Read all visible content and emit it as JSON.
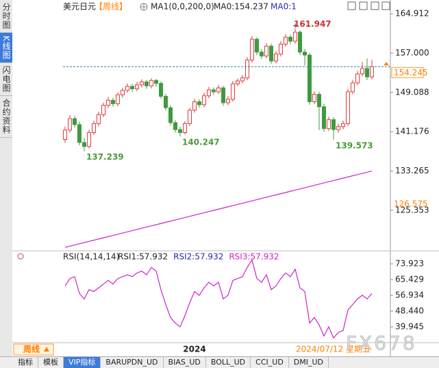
{
  "chart_data": [
    {
      "type": "candlestick",
      "title": "美元日元",
      "subtitle": "【周线】",
      "header_notes": [
        "MA0:154.237",
        "MA0:1"
      ],
      "categories": [
        null,
        null,
        null,
        null,
        null,
        null,
        null,
        null,
        null,
        null,
        null,
        null,
        null,
        null,
        null,
        null,
        null,
        null,
        null,
        null,
        null,
        null,
        null,
        null,
        null,
        null,
        null,
        "2024",
        null,
        null,
        null,
        null,
        null,
        null,
        null,
        null,
        null,
        null,
        null,
        null,
        null,
        null,
        null,
        null,
        null,
        null,
        null,
        null,
        null,
        null,
        null,
        null,
        null,
        null,
        null,
        null,
        null,
        null,
        null,
        null,
        null,
        null,
        null,
        null,
        null
      ],
      "open": [
        139.6,
        141.5,
        143.8,
        142.6,
        139.0,
        138.2,
        141.0,
        142.8,
        144.6,
        146.5,
        147.5,
        146.8,
        148.6,
        149.5,
        150.3,
        149.8,
        150.6,
        151.2,
        150.4,
        151.5,
        150.9,
        148.3,
        146.0,
        143.0,
        141.6,
        141.0,
        142.8,
        145.5,
        147.2,
        146.6,
        148.4,
        149.6,
        149.2,
        150.0,
        147.0,
        147.7,
        150.8,
        151.4,
        152.0,
        155.6,
        159.8,
        157.2,
        156.4,
        158.4,
        155.4,
        156.8,
        158.8,
        160.2,
        159.4,
        161.2,
        157.2,
        156.6,
        147.2,
        148.7,
        146.2,
        141.8,
        143.6,
        141.6,
        142.2,
        142.8,
        149.2,
        151.0,
        152.8,
        153.9,
        152.2
      ],
      "high": [
        142.2,
        144.5,
        144.4,
        143.2,
        140.0,
        141.6,
        143.4,
        145.2,
        147.0,
        148.2,
        148.0,
        149.1,
        150.0,
        150.9,
        150.8,
        151.2,
        151.7,
        151.6,
        151.9,
        151.8,
        151.3,
        148.8,
        146.5,
        143.5,
        142.2,
        143.3,
        146.0,
        147.8,
        147.7,
        149.0,
        150.2,
        150.1,
        150.6,
        150.4,
        148.3,
        151.4,
        151.9,
        152.6,
        156.2,
        160.4,
        160.2,
        157.8,
        159.0,
        158.9,
        157.4,
        159.4,
        160.8,
        160.7,
        161.947,
        161.6,
        157.8,
        157.0,
        149.3,
        149.2,
        146.8,
        144.2,
        144.1,
        142.8,
        143.4,
        149.8,
        151.6,
        153.4,
        155.2,
        155.9,
        155.6
      ],
      "low": [
        138.9,
        141.0,
        142.0,
        138.4,
        137.239,
        137.8,
        140.5,
        142.2,
        144.1,
        145.9,
        146.2,
        146.3,
        148.0,
        149.0,
        149.2,
        149.3,
        150.1,
        149.8,
        149.9,
        150.2,
        147.8,
        145.4,
        142.4,
        141.0,
        140.247,
        140.6,
        142.3,
        145.0,
        146.0,
        146.1,
        147.9,
        148.6,
        148.8,
        146.4,
        146.5,
        147.2,
        150.3,
        150.9,
        151.5,
        155.1,
        156.6,
        155.8,
        155.9,
        154.8,
        154.9,
        156.3,
        158.3,
        158.8,
        158.9,
        156.6,
        154.5,
        146.6,
        146.7,
        141.5,
        141.2,
        141.3,
        139.573,
        141.0,
        141.6,
        142.3,
        148.7,
        150.5,
        152.3,
        151.6,
        151.7
      ],
      "close": [
        141.5,
        143.8,
        142.6,
        139.0,
        138.2,
        141.0,
        142.8,
        144.6,
        146.5,
        147.5,
        146.8,
        148.6,
        149.5,
        150.3,
        149.8,
        150.6,
        151.2,
        150.4,
        151.5,
        150.9,
        148.3,
        146.0,
        143.0,
        141.6,
        141.0,
        142.8,
        145.5,
        147.2,
        146.6,
        148.4,
        149.6,
        149.2,
        150.0,
        147.0,
        147.7,
        150.8,
        151.4,
        152.0,
        155.6,
        159.8,
        157.2,
        156.4,
        158.4,
        155.4,
        156.8,
        158.8,
        160.2,
        159.4,
        161.2,
        157.2,
        156.6,
        147.2,
        148.7,
        146.2,
        141.8,
        143.6,
        141.6,
        142.2,
        142.8,
        149.2,
        151.0,
        152.8,
        153.9,
        152.2,
        154.245
      ],
      "up_color": "#e03a3a",
      "down_color": "#3f9a3f",
      "series": [
        {
          "name": "MA1(0,0,200,0)",
          "color": "#cc22cc",
          "values": [
            117.9,
            118.14,
            118.38,
            118.62,
            118.86,
            119.1,
            119.34,
            119.58,
            119.82,
            120.06,
            120.3,
            120.54,
            120.78,
            121.02,
            121.26,
            121.5,
            121.74,
            121.98,
            122.22,
            122.46,
            122.7,
            122.94,
            123.18,
            123.42,
            123.66,
            123.9,
            124.14,
            124.38,
            124.62,
            124.86,
            125.1,
            125.34,
            125.58,
            125.82,
            126.06,
            126.3,
            126.54,
            126.78,
            127.02,
            127.26,
            127.5,
            127.74,
            127.98,
            128.22,
            128.46,
            128.7,
            128.94,
            129.18,
            129.42,
            129.66,
            129.9,
            130.14,
            130.38,
            130.62,
            130.86,
            131.1,
            131.34,
            131.58,
            131.82,
            132.06,
            132.3,
            132.54,
            132.78,
            133.02,
            133.26
          ]
        }
      ],
      "ylim": [
        117.2,
        166.3
      ],
      "yticks": [
        125.353,
        133.265,
        141.176,
        149.088,
        {
          "value": 157,
          "label": "157.000"
        },
        164.912
      ],
      "right_markers": [
        126.575
      ],
      "current_date": "2024/07/12 星期五"
    },
    {
      "type": "line",
      "title": "RSI(14,14,14)",
      "series": [
        {
          "name": "RSI1:57.932",
          "color": "#222222"
        },
        {
          "name": "RSI2:57.932",
          "color": "#2a2aa8"
        },
        {
          "name": "RSI3:57.932",
          "color": "#cc22cc",
          "values": [
            62,
            66,
            67,
            58,
            55,
            60,
            59,
            61,
            63,
            65,
            63,
            66,
            67,
            68,
            67,
            69,
            70,
            68,
            72,
            70,
            60,
            52,
            45,
            42,
            40,
            46,
            53,
            59,
            57,
            61,
            64,
            62,
            64,
            55,
            57,
            65,
            66,
            67,
            72,
            76,
            66,
            64,
            68,
            60,
            62,
            66,
            69,
            67,
            71,
            61,
            59,
            42,
            45,
            41,
            35,
            40,
            34,
            37,
            38,
            49,
            52,
            55,
            57,
            55,
            57.932
          ]
        }
      ],
      "ylim": [
        31.45,
        78.72
      ],
      "yticks": [
        39.945,
        {
          "value": 48.44,
          "label": "48.440"
        },
        56.934,
        65.429,
        73.923
      ]
    }
  ],
  "sidebar_tabs": [
    "分时图",
    "K线图",
    "闪电图",
    "合约资料"
  ],
  "period_button": "周线",
  "toolbar_tabs": [
    "指标",
    "模板",
    "VIP指标",
    "BARUPDN_UD",
    "BIAS_UD",
    "BOLL_UD",
    "CCI_UD",
    "DMI_UD"
  ],
  "watermark": "FX678"
}
